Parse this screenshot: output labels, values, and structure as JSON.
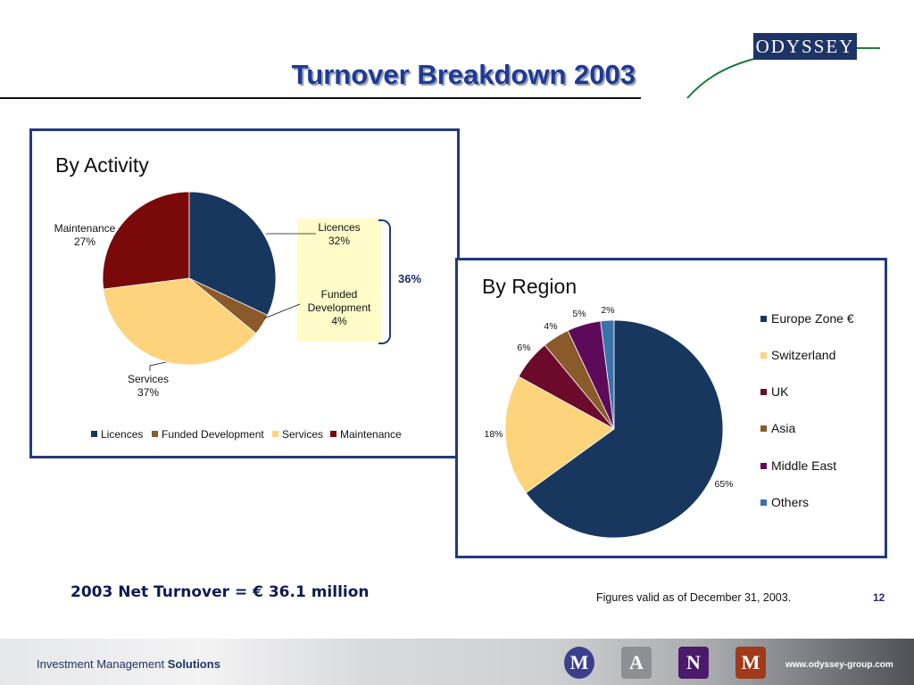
{
  "title": "Turnover Breakdown 2003",
  "logo": {
    "text": "ODYSSEY"
  },
  "activity": {
    "heading": "By Activity",
    "labels": {
      "maintenance": [
        "Maintenance",
        "27%"
      ],
      "licences": [
        "Licences",
        "32%"
      ],
      "funded": [
        "Funded",
        "Development",
        "4%"
      ],
      "services": [
        "Services",
        "37%"
      ]
    },
    "bracket_label": "36%"
  },
  "region": {
    "heading": "By Region"
  },
  "chart_data": [
    {
      "type": "pie",
      "title": "By Activity",
      "categories": [
        "Licences",
        "Funded Development",
        "Services",
        "Maintenance"
      ],
      "values": [
        32,
        4,
        37,
        27
      ],
      "unit": "%",
      "colors": [
        "#17375e",
        "#8b5a2b",
        "#fdd37c",
        "#7a0a0a"
      ],
      "legend": "bottom",
      "annotation": "36%"
    },
    {
      "type": "pie",
      "title": "By Region",
      "categories": [
        "Europe Zone €",
        "Switzerland",
        "UK",
        "Asia",
        "Middle East",
        "Others"
      ],
      "values": [
        65,
        18,
        6,
        4,
        5,
        2
      ],
      "value_labels": [
        "65%",
        "18%",
        "6%",
        "4%",
        "5%",
        "2%"
      ],
      "unit": "%",
      "colors": [
        "#17375e",
        "#fdd37c",
        "#6b0a2a",
        "#8b5a2b",
        "#5e0a5a",
        "#3a72aa"
      ],
      "legend": "right"
    }
  ],
  "footer": {
    "net_turnover": "2003 Net Turnover = € 36.1 million",
    "valid_note": "Figures valid as of December 31, 2003.",
    "page_number": "12",
    "solutions_prefix": "Investment Management",
    "solutions_bold": "Solutions",
    "url": "www.odyssey-group.com",
    "badges": [
      {
        "letter": "M",
        "color": "#3b3f8f"
      },
      {
        "letter": "A",
        "color": "#8c8f94"
      },
      {
        "letter": "N",
        "color": "#4b1a6b"
      },
      {
        "letter": "M",
        "color": "#a13a1a"
      }
    ]
  }
}
